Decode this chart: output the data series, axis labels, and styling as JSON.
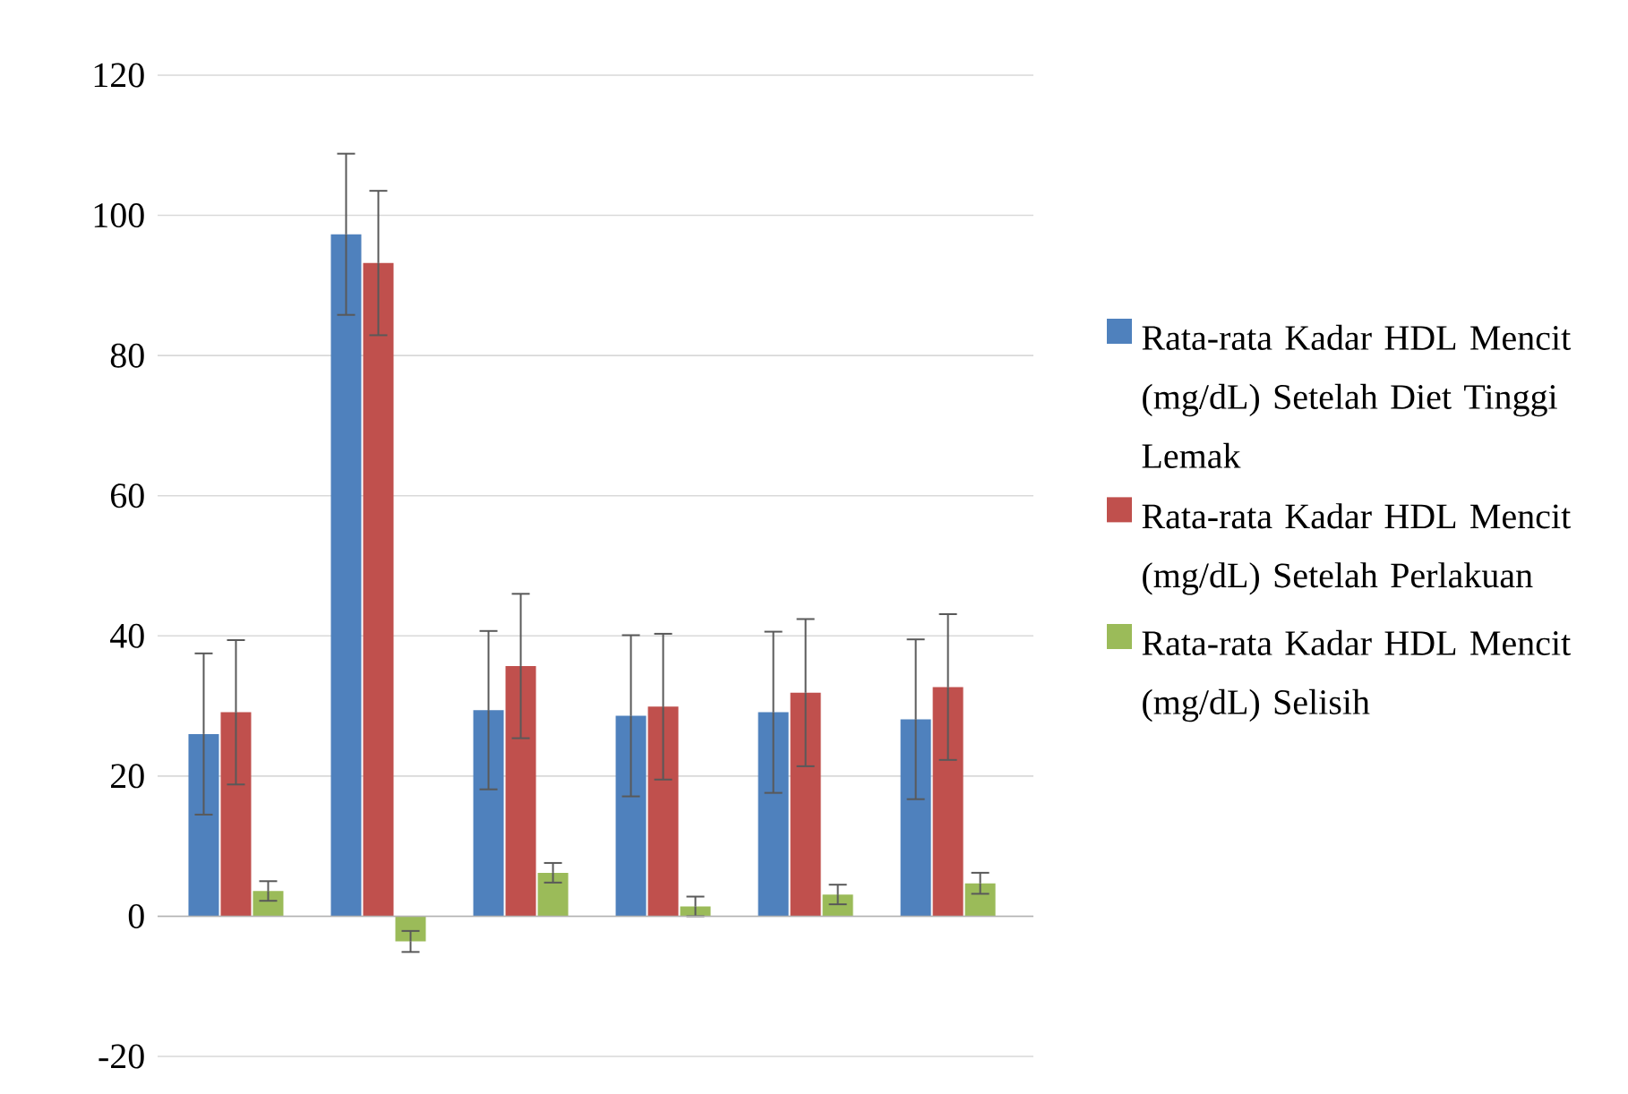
{
  "chart_data": {
    "type": "bar",
    "categories": [
      null,
      null,
      null,
      null,
      null,
      null
    ],
    "series": [
      {
        "name": "Rata-rata Kadar HDL Mencit (mg/dL) Setelah Diet Tinggi Lemak",
        "color": "#4f81bd",
        "values": [
          26.0,
          97.3,
          29.4,
          28.6,
          29.1,
          28.1
        ],
        "errors": [
          11.5,
          11.5,
          11.3,
          11.5,
          11.5,
          11.4
        ]
      },
      {
        "name": "Rata-rata Kadar HDL Mencit (mg/dL) Setelah Perlakuan",
        "color": "#c0504d",
        "values": [
          29.1,
          93.2,
          35.7,
          29.9,
          31.9,
          32.7
        ],
        "errors": [
          10.3,
          10.3,
          10.3,
          10.4,
          10.5,
          10.4
        ]
      },
      {
        "name": "Rata-rata Kadar HDL Mencit (mg/dL) Selisih",
        "color": "#9bbb59",
        "values": [
          3.6,
          -3.6,
          6.2,
          1.4,
          3.1,
          4.7
        ],
        "errors": [
          1.4,
          1.5,
          1.4,
          1.4,
          1.4,
          1.5
        ]
      }
    ],
    "ylim": [
      -20,
      120
    ],
    "yticks": [
      -20,
      0,
      20,
      40,
      60,
      80,
      100,
      120
    ],
    "grid": "y",
    "legend": "right",
    "tick_labels": "y"
  }
}
